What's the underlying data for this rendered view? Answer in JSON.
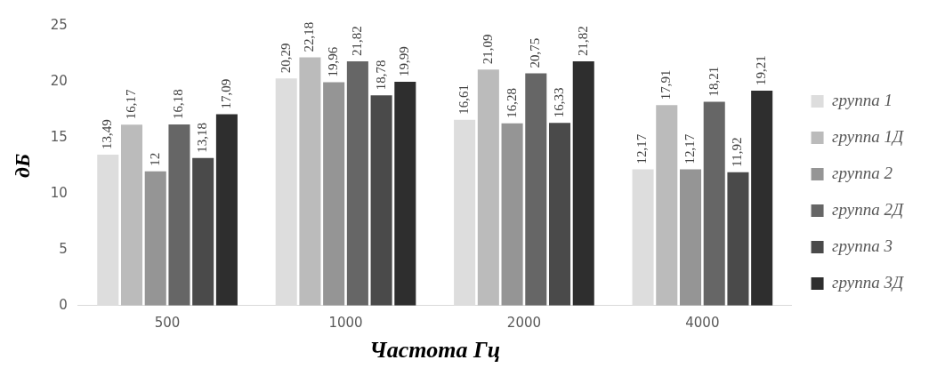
{
  "chart_data": {
    "type": "bar",
    "xlabel": "Частота Гц",
    "ylabel": "дБ",
    "categories": [
      "500",
      "1000",
      "2000",
      "4000"
    ],
    "ylim": [
      0,
      25
    ],
    "yticks": [
      0,
      5,
      10,
      15,
      20,
      25
    ],
    "grid": false,
    "legend": "right",
    "series": [
      {
        "name": "группа 1",
        "color": "#dddddd",
        "values": [
          13.49,
          20.29,
          16.61,
          12.17
        ],
        "value_labels": [
          "13,49",
          "20,29",
          "16,61",
          "12,17"
        ]
      },
      {
        "name": "группа 1Д",
        "color": "#bbbbbb",
        "values": [
          16.17,
          22.18,
          21.09,
          17.91
        ],
        "value_labels": [
          "16,17",
          "22,18",
          "21,09",
          "17,91"
        ]
      },
      {
        "name": "группа 2",
        "color": "#959595",
        "values": [
          12,
          19.96,
          16.28,
          12.17
        ],
        "value_labels": [
          "12",
          "19,96",
          "16,28",
          "12,17"
        ]
      },
      {
        "name": "группа 2Д",
        "color": "#666666",
        "values": [
          16.18,
          21.82,
          20.75,
          18.21
        ],
        "value_labels": [
          "16,18",
          "21,82",
          "20,75",
          "18,21"
        ]
      },
      {
        "name": "группа 3",
        "color": "#4a4a4a",
        "values": [
          13.18,
          18.78,
          16.33,
          11.92
        ],
        "value_labels": [
          "13,18",
          "18,78",
          "16,33",
          "11,92"
        ]
      },
      {
        "name": "группа 3Д",
        "color": "#2e2e2e",
        "values": [
          17.09,
          19.99,
          21.82,
          19.21
        ],
        "value_labels": [
          "17,09",
          "19,99",
          "21,82",
          "19,21"
        ]
      }
    ]
  }
}
